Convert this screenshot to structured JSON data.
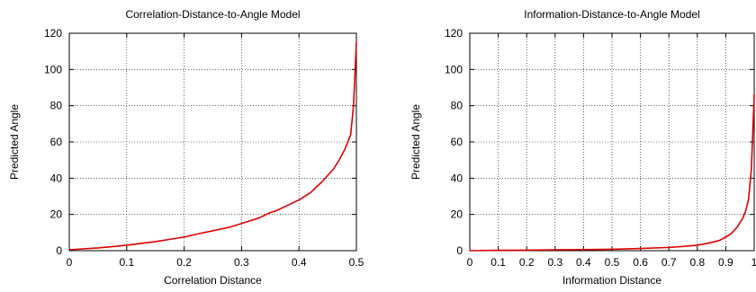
{
  "colors": {
    "series": "#dd0000",
    "axes": "#000000",
    "background": "#ffffff"
  },
  "chart_data": [
    {
      "type": "line",
      "title": "Correlation-Distance-to-Angle Model",
      "xlabel": "Correlation Distance",
      "ylabel": "Predicted Angle",
      "xlim": [
        0,
        0.5
      ],
      "ylim": [
        0,
        120
      ],
      "xticks": [
        "0",
        "0.1",
        "0.2",
        "0.3",
        "0.4",
        "0.5"
      ],
      "yticks": [
        "0",
        "20",
        "40",
        "60",
        "80",
        "100",
        "120"
      ],
      "grid": true,
      "series": [
        {
          "x": [
            0,
            0.05,
            0.1,
            0.15,
            0.18,
            0.2,
            0.22,
            0.25,
            0.28,
            0.3,
            0.33,
            0.35,
            0.36,
            0.38,
            0.4,
            0.42,
            0.44,
            0.46,
            0.47,
            0.48,
            0.49,
            0.495,
            0.5
          ],
          "y": [
            0.5,
            1.5,
            3,
            5,
            6.5,
            7.5,
            9,
            11,
            13,
            15,
            18,
            21,
            22,
            25,
            28,
            32,
            38,
            45,
            50,
            56,
            64,
            80,
            115
          ]
        }
      ]
    },
    {
      "type": "line",
      "title": "Information-Distance-to-Angle Model",
      "xlabel": "Information Distance",
      "ylabel": "Predicted Angle",
      "xlim": [
        0,
        1
      ],
      "ylim": [
        0,
        120
      ],
      "xticks": [
        "0",
        "0.1",
        "0.2",
        "0.3",
        "0.4",
        "0.5",
        "0.6",
        "0.7",
        "0.8",
        "0.9",
        "1"
      ],
      "yticks": [
        "0",
        "20",
        "40",
        "60",
        "80",
        "100",
        "120"
      ],
      "grid": true,
      "series": [
        {
          "x": [
            0,
            0.1,
            0.2,
            0.3,
            0.4,
            0.5,
            0.6,
            0.7,
            0.75,
            0.8,
            0.85,
            0.88,
            0.9,
            0.92,
            0.94,
            0.96,
            0.97,
            0.98,
            0.99,
            1.0
          ],
          "y": [
            0,
            0.2,
            0.3,
            0.5,
            0.6,
            0.8,
            1.2,
            1.8,
            2.3,
            3.0,
            4.5,
            5.8,
            7.5,
            9.5,
            13,
            18,
            22,
            28,
            45,
            86
          ]
        }
      ]
    }
  ]
}
